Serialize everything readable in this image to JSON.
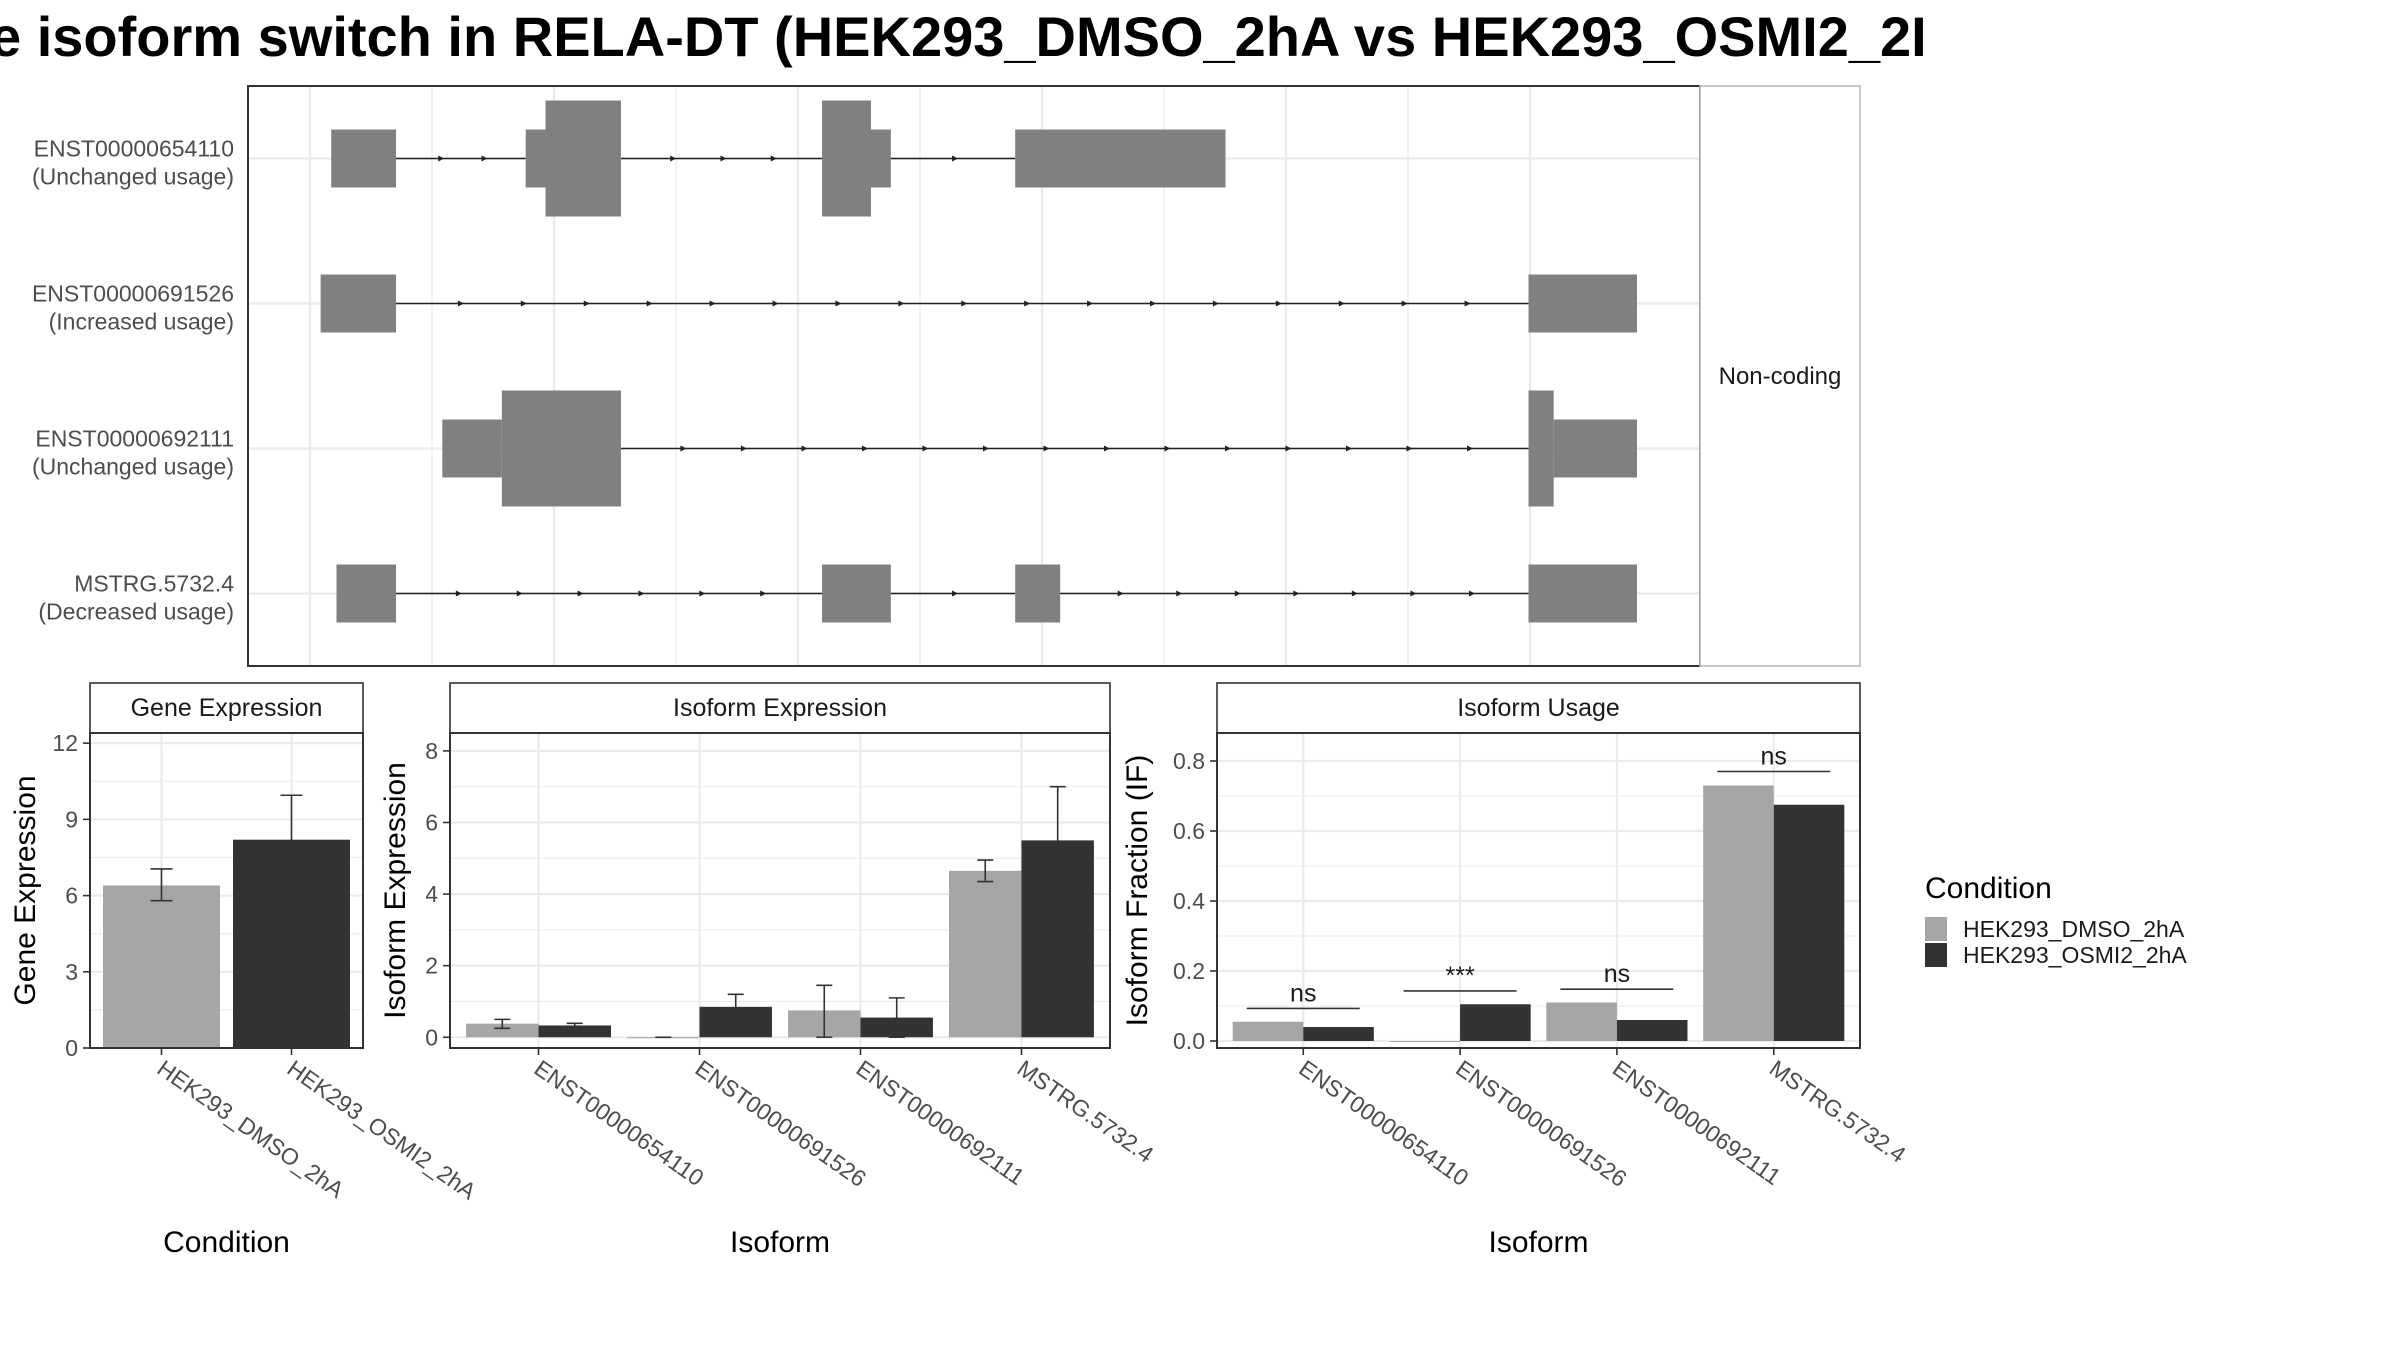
{
  "title": "e isoform switch in RELA-DT (HEK293_DMSO_2hA vs HEK293_OSMI2_2I",
  "colors": {
    "dmso": "#a6a6a6",
    "osmi2": "#333333",
    "exon": "#808080",
    "grid": "#ebebeb",
    "panel_border": "#333333",
    "strip_fill": "#ffffff",
    "text": "#4d4d4d"
  },
  "chart_data": [
    {
      "type": "gene-structure",
      "facet_label": "Non-coding",
      "coord_range": [
        0,
        1
      ],
      "transcripts": [
        {
          "id": "ENST00000654110",
          "usage": "(Unchanged usage)",
          "exons": [
            {
              "start": 0.013,
              "end": 0.062,
              "tall": false
            },
            {
              "start": 0.16,
              "end": 0.175,
              "tall": false
            },
            {
              "start": 0.175,
              "end": 0.232,
              "tall": true
            },
            {
              "start": 0.384,
              "end": 0.421,
              "tall": true
            },
            {
              "start": 0.421,
              "end": 0.436,
              "tall": false
            },
            {
              "start": 0.53,
              "end": 0.689,
              "tall": false
            }
          ]
        },
        {
          "id": "ENST00000691526",
          "usage": "(Increased usage)",
          "exons": [
            {
              "start": 0.005,
              "end": 0.062,
              "tall": false
            },
            {
              "start": 0.918,
              "end": 1.0,
              "tall": false
            }
          ]
        },
        {
          "id": "ENST00000692111",
          "usage": "(Unchanged usage)",
          "exons": [
            {
              "start": 0.097,
              "end": 0.142,
              "tall": false
            },
            {
              "start": 0.142,
              "end": 0.232,
              "tall": true
            },
            {
              "start": 0.918,
              "end": 0.937,
              "tall": true
            },
            {
              "start": 0.937,
              "end": 1.0,
              "tall": false
            }
          ]
        },
        {
          "id": "MSTRG.5732.4",
          "usage": "(Decreased usage)",
          "exons": [
            {
              "start": 0.017,
              "end": 0.062,
              "tall": false
            },
            {
              "start": 0.384,
              "end": 0.436,
              "tall": false
            },
            {
              "start": 0.53,
              "end": 0.564,
              "tall": false
            },
            {
              "start": 0.918,
              "end": 1.0,
              "tall": false
            }
          ]
        }
      ]
    },
    {
      "type": "bar",
      "strip": "Gene Expression",
      "xlabel": "Condition",
      "ylabel": "Gene Expression",
      "ylim": [
        0,
        12.4
      ],
      "yticks": [
        0,
        3,
        6,
        9,
        12
      ],
      "categories": [
        "HEK293_DMSO_2hA",
        "HEK293_OSMI2_2hA"
      ],
      "values": [
        6.4,
        8.2
      ],
      "errors": [
        [
          5.8,
          7.05
        ],
        [
          6.45,
          9.95
        ]
      ],
      "bar_series": [
        "dmso",
        "osmi2"
      ]
    },
    {
      "type": "bar",
      "strip": "Isoform Expression",
      "xlabel": "Isoform",
      "ylabel": "Isoform Expression",
      "ylim": [
        -0.3,
        8.5
      ],
      "yticks": [
        0,
        2,
        4,
        6,
        8
      ],
      "categories": [
        "ENST00000654110",
        "ENST00000691526",
        "ENST00000692111",
        "MSTRG.5732.4"
      ],
      "series": [
        {
          "name": "HEK293_DMSO_2hA",
          "values": [
            0.38,
            0.0,
            0.75,
            4.65
          ],
          "errors": [
            [
              0.25,
              0.5
            ],
            [
              0.0,
              0.0
            ],
            [
              0.0,
              1.45
            ],
            [
              4.35,
              4.95
            ]
          ]
        },
        {
          "name": "HEK293_OSMI2_2hA",
          "values": [
            0.33,
            0.85,
            0.55,
            5.5
          ],
          "errors": [
            [
              0.27,
              0.39
            ],
            [
              0.55,
              1.2
            ],
            [
              0.0,
              1.1
            ],
            [
              4.0,
              7.0
            ]
          ]
        }
      ]
    },
    {
      "type": "bar",
      "strip": "Isoform Usage",
      "xlabel": "Isoform",
      "ylabel": "Isoform Fraction (IF)",
      "ylim": [
        -0.02,
        0.88
      ],
      "yticks": [
        0.0,
        0.2,
        0.4,
        0.6,
        0.8
      ],
      "ytick_labels": [
        "0.0",
        "0.2",
        "0.4",
        "0.6",
        "0.8"
      ],
      "categories": [
        "ENST00000654110",
        "ENST00000691526",
        "ENST00000692111",
        "MSTRG.5732.4"
      ],
      "series": [
        {
          "name": "HEK293_DMSO_2hA",
          "values": [
            0.055,
            0.0,
            0.11,
            0.73
          ]
        },
        {
          "name": "HEK293_OSMI2_2hA",
          "values": [
            0.04,
            0.105,
            0.06,
            0.675
          ]
        }
      ],
      "significance": [
        {
          "label": "ns",
          "y": 0.093
        },
        {
          "label": "***",
          "y": 0.143
        },
        {
          "label": "ns",
          "y": 0.148
        },
        {
          "label": "ns",
          "y": 0.77
        }
      ]
    }
  ],
  "legend": {
    "title": "Condition",
    "items": [
      {
        "label": "HEK293_DMSO_2hA",
        "color": "dmso"
      },
      {
        "label": "HEK293_OSMI2_2hA",
        "color": "osmi2"
      }
    ]
  }
}
